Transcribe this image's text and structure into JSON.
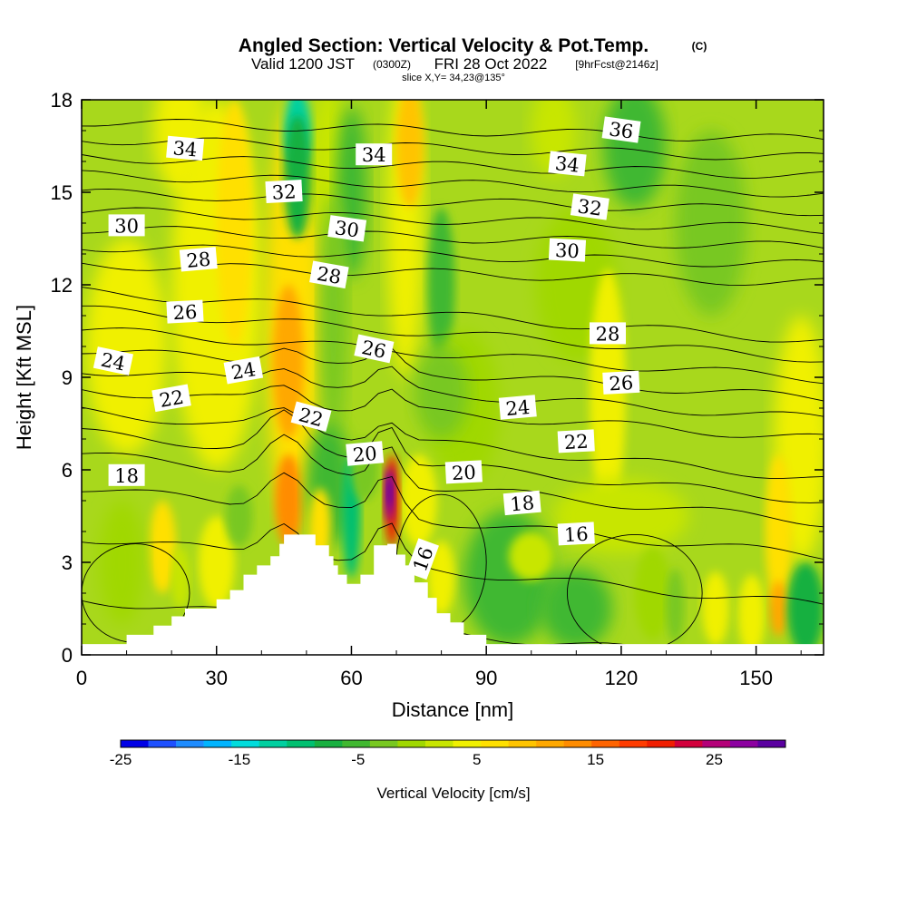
{
  "title": {
    "main": "Angled Section: Vertical Velocity & Pot.Temp.",
    "copyright": "(C)",
    "valid_prefix": "Valid 1200 JST",
    "valid_utc": "(0300Z)",
    "valid_date": "FRI 28 Oct 2022",
    "forecast": "[9hrFcst@2146z]",
    "slice": "slice X,Y= 34,23@135°"
  },
  "chart_data": {
    "type": "heatmap",
    "title": "Angled Section: Vertical Velocity & Pot.Temp.",
    "xlabel": "Distance [nm]",
    "ylabel": "Height [Kft MSL]",
    "xlim": [
      0,
      165
    ],
    "ylim": [
      0,
      18
    ],
    "xticks": [
      0,
      30,
      60,
      90,
      120,
      150
    ],
    "yticks": [
      0,
      3,
      6,
      9,
      12,
      15,
      18
    ],
    "colorbar": {
      "title": "Vertical Velocity [cm/s]",
      "range": [
        -25,
        31
      ],
      "tick_labels": [
        -25,
        -15,
        -5,
        5,
        15,
        25
      ],
      "colors": [
        "#0000e6",
        "#1e50ff",
        "#1e8cff",
        "#00b4ff",
        "#00dcdc",
        "#00d0a0",
        "#00c070",
        "#18b040",
        "#40b830",
        "#78c820",
        "#a0d800",
        "#c8e600",
        "#f0f000",
        "#ffe000",
        "#ffc400",
        "#ffa800",
        "#ff8c00",
        "#ff6400",
        "#ff3c00",
        "#f01e00",
        "#d2003c",
        "#b40078",
        "#8c00a0",
        "#5a00a0"
      ]
    },
    "terrain_kft": [
      [
        0,
        0.35
      ],
      [
        10,
        0.35
      ],
      [
        10,
        0.65
      ],
      [
        16,
        0.65
      ],
      [
        16,
        0.95
      ],
      [
        20,
        0.95
      ],
      [
        20,
        1.25
      ],
      [
        23,
        1.25
      ],
      [
        23,
        1.5
      ],
      [
        30,
        1.5
      ],
      [
        30,
        1.8
      ],
      [
        33,
        1.8
      ],
      [
        33,
        2.1
      ],
      [
        36,
        2.1
      ],
      [
        36,
        2.6
      ],
      [
        39,
        2.6
      ],
      [
        39,
        2.9
      ],
      [
        42,
        2.9
      ],
      [
        42,
        3.2
      ],
      [
        44,
        3.2
      ],
      [
        44,
        3.6
      ],
      [
        45,
        3.6
      ],
      [
        45,
        3.9
      ],
      [
        52,
        3.9
      ],
      [
        52,
        3.55
      ],
      [
        55,
        3.55
      ],
      [
        55,
        3.2
      ],
      [
        56,
        3.2
      ],
      [
        56,
        2.9
      ],
      [
        57,
        2.9
      ],
      [
        57,
        2.6
      ],
      [
        59,
        2.6
      ],
      [
        59,
        2.3
      ],
      [
        62,
        2.3
      ],
      [
        62,
        2.6
      ],
      [
        65,
        2.6
      ],
      [
        65,
        3.55
      ],
      [
        68,
        3.55
      ],
      [
        68,
        3.6
      ],
      [
        70,
        3.6
      ],
      [
        70,
        3.25
      ],
      [
        72,
        3.25
      ],
      [
        72,
        2.9
      ],
      [
        74,
        2.9
      ],
      [
        74,
        2.35
      ],
      [
        77,
        2.35
      ],
      [
        77,
        1.85
      ],
      [
        79,
        1.85
      ],
      [
        79,
        1.35
      ],
      [
        82,
        1.35
      ],
      [
        82,
        1.05
      ],
      [
        85,
        1.05
      ],
      [
        85,
        0.65
      ],
      [
        90,
        0.65
      ],
      [
        90,
        0.35
      ],
      [
        165,
        0.35
      ]
    ],
    "theta_contour_labels": [
      {
        "value": 34,
        "x": 23,
        "y": 16.4,
        "angle": 5
      },
      {
        "value": 34,
        "x": 65,
        "y": 16.2,
        "angle": 0
      },
      {
        "value": 34,
        "x": 108,
        "y": 15.9,
        "angle": 6
      },
      {
        "value": 36,
        "x": 120,
        "y": 17.0,
        "angle": 8
      },
      {
        "value": 32,
        "x": 45,
        "y": 15.0,
        "angle": -3
      },
      {
        "value": 32,
        "x": 113,
        "y": 14.5,
        "angle": 8
      },
      {
        "value": 30,
        "x": 10,
        "y": 13.9,
        "angle": 0
      },
      {
        "value": 30,
        "x": 59,
        "y": 13.8,
        "angle": 8
      },
      {
        "value": 30,
        "x": 108,
        "y": 13.1,
        "angle": 3
      },
      {
        "value": 28,
        "x": 26,
        "y": 12.8,
        "angle": -5
      },
      {
        "value": 28,
        "x": 55,
        "y": 12.3,
        "angle": 10
      },
      {
        "value": 28,
        "x": 117,
        "y": 10.4,
        "angle": 0
      },
      {
        "value": 26,
        "x": 23,
        "y": 11.1,
        "angle": -3
      },
      {
        "value": 26,
        "x": 65,
        "y": 9.9,
        "angle": 12
      },
      {
        "value": 26,
        "x": 120,
        "y": 8.8,
        "angle": -3
      },
      {
        "value": 24,
        "x": 7,
        "y": 9.5,
        "angle": 12
      },
      {
        "value": 24,
        "x": 36,
        "y": 9.2,
        "angle": -10
      },
      {
        "value": 24,
        "x": 97,
        "y": 8.0,
        "angle": -5
      },
      {
        "value": 22,
        "x": 20,
        "y": 8.3,
        "angle": -10
      },
      {
        "value": 22,
        "x": 51,
        "y": 7.7,
        "angle": 15
      },
      {
        "value": 22,
        "x": 110,
        "y": 6.9,
        "angle": -3
      },
      {
        "value": 20,
        "x": 63,
        "y": 6.5,
        "angle": -5
      },
      {
        "value": 20,
        "x": 85,
        "y": 5.9,
        "angle": -3
      },
      {
        "value": 18,
        "x": 10,
        "y": 5.8,
        "angle": 0
      },
      {
        "value": 18,
        "x": 98,
        "y": 4.9,
        "angle": -5
      },
      {
        "value": 16,
        "x": 110,
        "y": 3.9,
        "angle": -3
      },
      {
        "value": 16,
        "x": 76,
        "y": 3.1,
        "angle": -70
      }
    ],
    "theta_contour_levels": [
      16,
      17,
      18,
      19,
      20,
      21,
      22,
      23,
      24,
      25,
      26,
      27,
      28,
      29,
      30,
      31,
      32,
      33,
      34,
      35,
      36
    ]
  }
}
